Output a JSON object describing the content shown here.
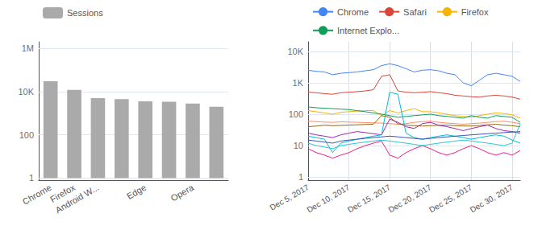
{
  "chart_data": [
    {
      "type": "bar",
      "categories": [
        "Chrome",
        "Firefox",
        "Android W...",
        null,
        "Edge",
        null,
        "Opera",
        null
      ],
      "series": [
        {
          "name": "Sessions",
          "color": "#aaaaaa",
          "values": [
            30000,
            12000,
            5000,
            4500,
            3500,
            3400,
            2800,
            2000
          ]
        }
      ],
      "ylim": [
        0.8,
        2000000
      ],
      "yticks": [
        1,
        100,
        {
          "value": 10000,
          "label": "10K"
        },
        {
          "value": 1000000,
          "label": "1M"
        }
      ],
      "log": "y",
      "grid": "y",
      "legend": "upper left"
    },
    {
      "type": "line",
      "x": [
        5,
        6,
        7,
        8,
        9,
        10,
        11,
        12,
        13,
        14,
        15,
        16,
        17,
        18,
        19,
        20,
        21,
        22,
        23,
        24,
        25,
        26,
        27,
        28,
        29,
        30,
        31
      ],
      "xlim": [
        5,
        31
      ],
      "xticks": [
        {
          "value": 5,
          "label": "Dec 5, 2017"
        },
        {
          "value": 10,
          "label": "Dec 10, 2017"
        },
        {
          "value": 15,
          "label": "Dec 15, 2017"
        },
        {
          "value": 20,
          "label": "Dec 20, 2017"
        },
        {
          "value": 25,
          "label": "Dec 25, 2017"
        },
        {
          "value": 30,
          "label": "Dec 30, 2017"
        }
      ],
      "ylim": [
        0.8,
        20000
      ],
      "yticks": [
        1,
        10,
        100,
        {
          "value": 1000,
          "label": "1K"
        },
        {
          "value": 10000,
          "label": "10K"
        }
      ],
      "log": "y",
      "grid": true,
      "legend": "upper left",
      "series": [
        {
          "name": "Chrome",
          "color": "#4285f4",
          "values": [
            2500,
            2300,
            2200,
            1800,
            2000,
            2100,
            2200,
            2400,
            2600,
            3500,
            4000,
            3500,
            2800,
            2200,
            2500,
            2600,
            2400,
            2000,
            1800,
            1000,
            800,
            1200,
            1800,
            2000,
            1800,
            1600,
            1100
          ]
        },
        {
          "name": "Safari",
          "color": "#db4437",
          "values": [
            500,
            480,
            450,
            430,
            480,
            500,
            520,
            550,
            600,
            1600,
            1800,
            550,
            500,
            480,
            500,
            520,
            480,
            450,
            400,
            380,
            360,
            350,
            380,
            400,
            380,
            350,
            300
          ]
        },
        {
          "name": "Firefox",
          "color": "#f4b400",
          "values": [
            130,
            120,
            110,
            100,
            115,
            120,
            125,
            130,
            130,
            90,
            130,
            110,
            130,
            150,
            120,
            120,
            110,
            100,
            90,
            85,
            80,
            90,
            100,
            110,
            105,
            95,
            75
          ]
        },
        {
          "name": "Internet Explo...",
          "color": "#0f9d58",
          "values": [
            170,
            160,
            155,
            150,
            145,
            140,
            130,
            120,
            110,
            100,
            90,
            80,
            85,
            90,
            95,
            100,
            90,
            85,
            80,
            75,
            90,
            80,
            75,
            90,
            85,
            80,
            55
          ]
        },
        {
          "color": "#ff8a65",
          "values": [
            60,
            58,
            56,
            55,
            57,
            56,
            55,
            54,
            53,
            52,
            50,
            48,
            50,
            55,
            58,
            60,
            55,
            52,
            50,
            48,
            50,
            52,
            55,
            58,
            60,
            55,
            50
          ]
        },
        {
          "color": "#8d6914",
          "values": [
            40,
            42,
            45,
            43,
            44,
            45,
            46,
            47,
            48,
            90,
            80,
            50,
            45,
            43,
            42,
            43,
            44,
            45,
            43,
            42,
            42,
            44,
            46,
            48,
            45,
            43,
            40
          ]
        },
        {
          "color": "#9c27b0",
          "values": [
            25,
            22,
            20,
            18,
            22,
            25,
            28,
            26,
            24,
            22,
            70,
            55,
            40,
            35,
            50,
            55,
            45,
            40,
            35,
            30,
            35,
            40,
            45,
            35,
            30,
            28,
            25
          ]
        },
        {
          "color": "#00bcd4",
          "values": [
            20,
            18,
            16,
            6,
            12,
            14,
            16,
            18,
            20,
            22,
            500,
            430,
            25,
            18,
            16,
            18,
            20,
            22,
            20,
            18,
            16,
            18,
            20,
            22,
            20,
            15,
            12
          ]
        },
        {
          "color": "#3f51b5",
          "values": [
            15,
            14,
            13,
            12,
            14,
            15,
            16,
            17,
            18,
            19,
            20,
            19,
            18,
            17,
            16,
            17,
            18,
            19,
            20,
            21,
            22,
            23,
            24,
            25,
            26,
            27,
            28
          ]
        },
        {
          "color": "#26c6da",
          "values": [
            12,
            10,
            9,
            8,
            10,
            11,
            12,
            13,
            14,
            15,
            14,
            13,
            12,
            11,
            10,
            11,
            12,
            13,
            14,
            15,
            14,
            13,
            12,
            11,
            10,
            12,
            50
          ]
        },
        {
          "color": "#e91e8a",
          "values": [
            8,
            6,
            5,
            4,
            5,
            6,
            8,
            10,
            12,
            14,
            5,
            4,
            6,
            8,
            10,
            8,
            6,
            5,
            6,
            8,
            10,
            8,
            6,
            5,
            6,
            5,
            7
          ]
        }
      ]
    }
  ]
}
